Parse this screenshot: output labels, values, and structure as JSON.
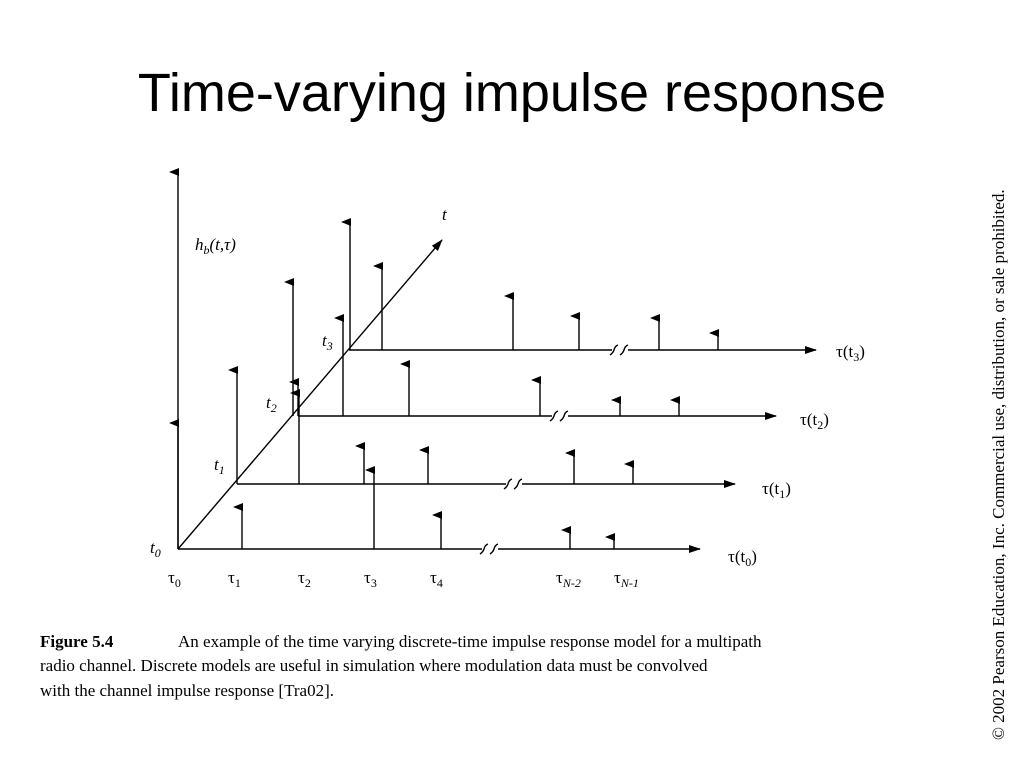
{
  "header": {
    "title": "Time-varying impulse response"
  },
  "figure": {
    "y_axis_label": {
      "main": "h",
      "sub": "b",
      "rest": "(t,τ)"
    },
    "time_axis_label": "t",
    "time_labels": [
      {
        "main": "t",
        "sub": "0"
      },
      {
        "main": "t",
        "sub": "1"
      },
      {
        "main": "t",
        "sub": "2"
      },
      {
        "main": "t",
        "sub": "3"
      }
    ],
    "delay_labels": [
      {
        "main": "τ",
        "sub": "0"
      },
      {
        "main": "τ",
        "sub": "1"
      },
      {
        "main": "τ",
        "sub": "2"
      },
      {
        "main": "τ",
        "sub": "3"
      },
      {
        "main": "τ",
        "sub": "4"
      },
      {
        "main": "τ",
        "sub": "N-2"
      },
      {
        "main": "τ",
        "sub": "N-1"
      }
    ],
    "delay_axis_labels": [
      {
        "main": "τ(t",
        "sub": "0",
        "rest": ")"
      },
      {
        "main": "τ(t",
        "sub": "1",
        "rest": ")"
      },
      {
        "main": "τ(t",
        "sub": "2",
        "rest": ")"
      },
      {
        "main": "τ(t",
        "sub": "3",
        "rest": ")"
      }
    ]
  },
  "caption": {
    "label": "Figure 5.4",
    "lines": [
      "An example of the time varying discrete-time impulse response model for a multipath",
      "radio channel. Discrete models are useful in simulation where modulation data must be convolved",
      "with the channel impulse response [Tra02]."
    ]
  },
  "copyright": "© 2002 Pearson Education, Inc. Commercial use, distribution, or sale prohibited."
}
